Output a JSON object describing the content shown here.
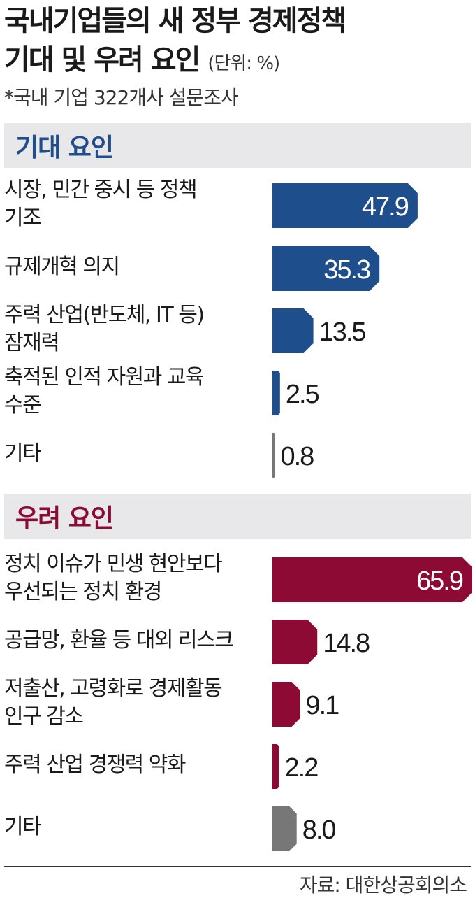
{
  "title": {
    "line1": "국내기업들의 새 정부 경제정책",
    "line2": "기대 및 우려 요인",
    "unit": "(단위: %)"
  },
  "subtitle": "*국내 기업 322개사 설문조사",
  "source": "자료: 대한상공회의소",
  "colors": {
    "expectation": "#1f4e8c",
    "concern": "#8c0a34",
    "other": "#777777",
    "section_bg": "#e8e8ea"
  },
  "chart_data": [
    {
      "type": "bar",
      "title": "기대 요인",
      "orientation": "horizontal",
      "categories": [
        [
          "시장, 민간 중시 등 정책",
          "기조"
        ],
        [
          "규제개혁 의지"
        ],
        [
          "주력 산업(반도체, IT 등)",
          "잠재력"
        ],
        [
          "축적된 인적 자원과 교육",
          "수준"
        ],
        [
          "기타"
        ]
      ],
      "values": [
        47.9,
        35.3,
        13.5,
        2.5,
        0.8
      ],
      "value_labels": [
        "47.9",
        "35.3",
        "13.5",
        "2.5",
        "0.8"
      ],
      "xlim": [
        0,
        65.9
      ]
    },
    {
      "type": "bar",
      "title": "우려 요인",
      "orientation": "horizontal",
      "categories": [
        [
          "정치 이슈가 민생 현안보다",
          "우선되는 정치 환경"
        ],
        [
          "공급망, 환율 등 대외 리스크"
        ],
        [
          "저출산, 고령화로 경제활동",
          "인구 감소"
        ],
        [
          "주력 산업 경쟁력 약화"
        ],
        [
          "기타"
        ]
      ],
      "values": [
        65.9,
        14.8,
        9.1,
        2.2,
        8.0
      ],
      "value_labels": [
        "65.9",
        "14.8",
        "9.1",
        "2.2",
        "8.0"
      ],
      "xlim": [
        0,
        65.9
      ]
    }
  ]
}
